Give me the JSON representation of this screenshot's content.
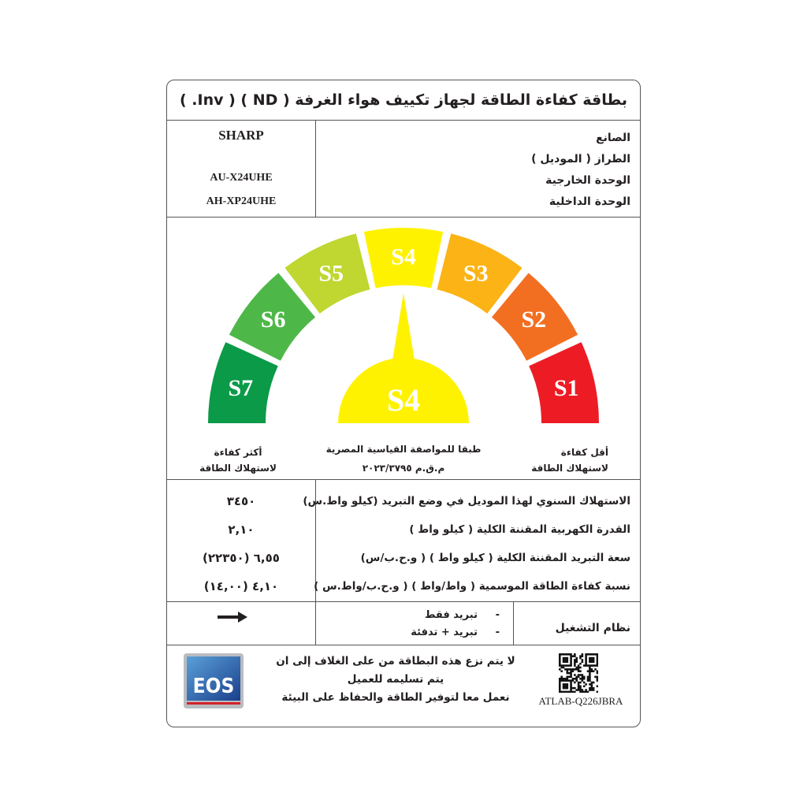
{
  "title": "بطاقة كفاءة الطاقة لجهاز تكييف هواء الغرفة ( ND ) ( Inv. )",
  "info": {
    "labels": [
      "الصانع",
      "الطراز ( الموديل )",
      "الوحدة الخارجية",
      "الوحدة الداخلية"
    ],
    "manufacturer": "SHARP",
    "outdoor_unit": "AU-X24UHE",
    "indoor_unit": "AH-XP24UHE"
  },
  "gauge": {
    "segments": [
      {
        "label": "S7",
        "color": "#0a9a48"
      },
      {
        "label": "S6",
        "color": "#4db848"
      },
      {
        "label": "S5",
        "color": "#bfd730"
      },
      {
        "label": "S4",
        "color": "#fff200"
      },
      {
        "label": "S3",
        "color": "#fbb316"
      },
      {
        "label": "S2",
        "color": "#f26f22"
      },
      {
        "label": "S1",
        "color": "#ed1c24"
      }
    ],
    "rating": "S4",
    "rating_color": "#fff200",
    "most_efficient": [
      "أكثر كفاءة",
      "لاستهلاك الطاقة"
    ],
    "least_efficient": [
      "أقل كفاءة",
      "لاستهلاك الطاقة"
    ],
    "standard": [
      "طبقا للمواصفة القياسية المصرية",
      "م.ق.م ٢٠٢٣/٣٧٩٥"
    ]
  },
  "specs": [
    {
      "label": "الاستهلاك السنوي لهذا الموديل في وضع التبريد (كيلو واط.س)",
      "value": "٣٤٥٠"
    },
    {
      "label": "القدرة الكهربية المقننة الكلية ( كيلو واط )",
      "value": "٢,١٠"
    },
    {
      "label": "سعة التبريد المقننة الكلية ( كيلو واط ) ( و.ح.ب/س)",
      "value": "٦,٥٥ (٢٢٣٥٠)"
    },
    {
      "label": "نسبة كفاءة الطاقة الموسمية ( واط/واط ) ( و.ح.ب/واط.س )",
      "value": "٤,١٠ (١٤,٠٠)"
    }
  ],
  "operation": {
    "label": "نظام التشغيل",
    "options": [
      "تبريد فقط",
      "تبريد + تدفئة"
    ],
    "bullet": "-",
    "selected_icon": "arrow-right-icon"
  },
  "footer": {
    "notice": [
      "لا يتم نزع هذه البطاقة من على الغلاف إلى ان",
      "يتم تسليمه للعميل",
      "نعمل معا لتوفير الطاقة والحفاظ على البيئة"
    ],
    "logo": "EOS",
    "code": "ATLAB-Q226JBRA"
  }
}
